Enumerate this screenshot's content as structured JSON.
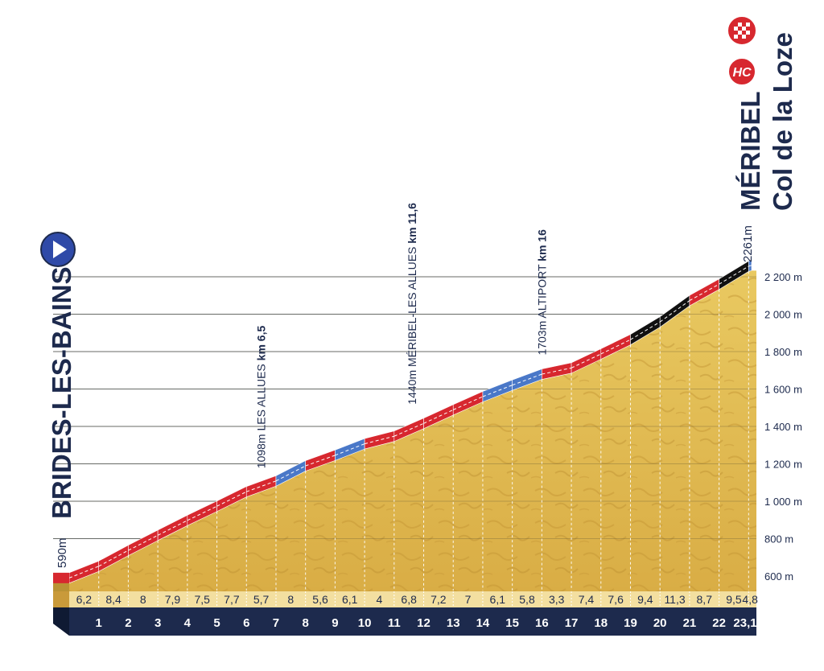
{
  "chart_data": {
    "type": "area",
    "title": "",
    "start": {
      "name": "BRIDES-LES-BAINS",
      "elevation_label": "590m"
    },
    "finish": {
      "name": "MÉRIBEL",
      "climb": "Col de la Loze",
      "elevation_label": "2261m",
      "category": "HC"
    },
    "ylim": [
      590,
      2261
    ],
    "xlim": [
      0,
      23.1
    ],
    "y_ticks": [
      {
        "value": 600,
        "label": "600 m"
      },
      {
        "value": 800,
        "label": "800 m"
      },
      {
        "value": 1000,
        "label": "1 000 m"
      },
      {
        "value": 1200,
        "label": "1 200 m"
      },
      {
        "value": 1400,
        "label": "1 400 m"
      },
      {
        "value": 1600,
        "label": "1 600 m"
      },
      {
        "value": 1800,
        "label": "1 800 m"
      },
      {
        "value": 2000,
        "label": "2 000 m"
      },
      {
        "value": 2200,
        "label": "2 200 m"
      }
    ],
    "km_labels": [
      "1",
      "2",
      "3",
      "4",
      "5",
      "6",
      "7",
      "8",
      "9",
      "10",
      "11",
      "12",
      "13",
      "14",
      "15",
      "16",
      "17",
      "18",
      "19",
      "20",
      "21",
      "22",
      "23,1"
    ],
    "gradients": [
      "6,2",
      "8,4",
      "8",
      "7,9",
      "7,5",
      "7,7",
      "5,7",
      "8",
      "5,6",
      "6,1",
      "4",
      "6,8",
      "7,2",
      "7",
      "6,1",
      "5,8",
      "3,3",
      "7,4",
      "7,6",
      "9,4",
      "11,3",
      "8,7",
      "9,5",
      "4,8"
    ],
    "gradient_values": [
      6.2,
      8.4,
      8,
      7.9,
      7.5,
      7.7,
      5.7,
      8,
      5.6,
      6.1,
      4,
      6.8,
      7.2,
      7,
      6.1,
      5.8,
      3.3,
      7.4,
      7.6,
      9.4,
      11.3,
      8.7,
      9.5,
      4.8
    ],
    "waypoints": [
      {
        "km": 6.5,
        "elevation": 1098,
        "elevation_label": "1098m",
        "name": "LES ALLUES",
        "km_label": "km 6,5"
      },
      {
        "km": 11.6,
        "elevation": 1440,
        "elevation_label": "1440m",
        "name": "MÉRIBEL-LES ALLUES",
        "km_label": "km 11,6"
      },
      {
        "km": 16,
        "elevation": 1703,
        "elevation_label": "1703m",
        "name": "ALTIPORT",
        "km_label": "km 16"
      }
    ],
    "colors": {
      "terrain": "#e8c45a",
      "terrain_dark": "#c99a3a",
      "gradient_easy": "#4a78c8",
      "gradient_hard": "#d7282f",
      "gradient_extreme": "#111111",
      "base_band": "#f3dfa0",
      "km_band": "#1d2a4d",
      "text": "#1d2a4d",
      "start_icon": "#2f4aa8"
    },
    "grid": true
  }
}
